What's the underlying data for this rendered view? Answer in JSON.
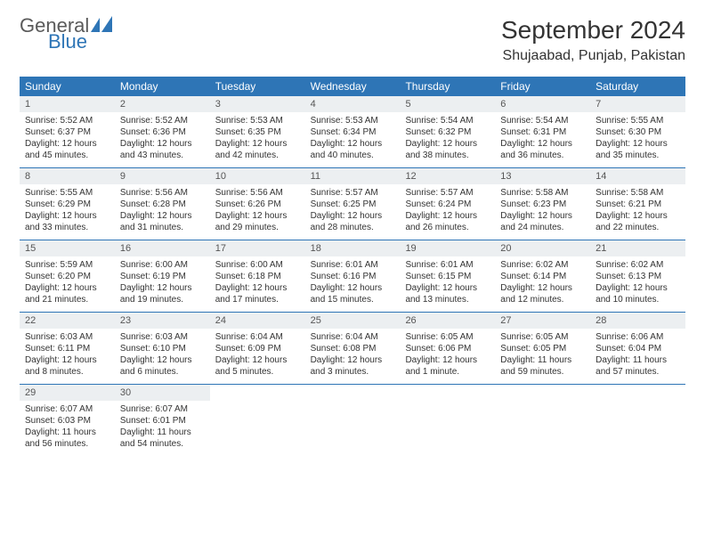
{
  "brand": {
    "word1": "General",
    "word2": "Blue",
    "icon_color": "#2e75b6",
    "text_color": "#5a5a5a"
  },
  "title": "September 2024",
  "location": "Shujaabad, Punjab, Pakistan",
  "colors": {
    "header_bg": "#2e75b6",
    "header_text": "#ffffff",
    "daynum_bg": "#eceff1",
    "border": "#2e75b6"
  },
  "day_labels": [
    "Sunday",
    "Monday",
    "Tuesday",
    "Wednesday",
    "Thursday",
    "Friday",
    "Saturday"
  ],
  "weeks": [
    [
      {
        "n": "1",
        "sr": "Sunrise: 5:52 AM",
        "ss": "Sunset: 6:37 PM",
        "d1": "Daylight: 12 hours",
        "d2": "and 45 minutes."
      },
      {
        "n": "2",
        "sr": "Sunrise: 5:52 AM",
        "ss": "Sunset: 6:36 PM",
        "d1": "Daylight: 12 hours",
        "d2": "and 43 minutes."
      },
      {
        "n": "3",
        "sr": "Sunrise: 5:53 AM",
        "ss": "Sunset: 6:35 PM",
        "d1": "Daylight: 12 hours",
        "d2": "and 42 minutes."
      },
      {
        "n": "4",
        "sr": "Sunrise: 5:53 AM",
        "ss": "Sunset: 6:34 PM",
        "d1": "Daylight: 12 hours",
        "d2": "and 40 minutes."
      },
      {
        "n": "5",
        "sr": "Sunrise: 5:54 AM",
        "ss": "Sunset: 6:32 PM",
        "d1": "Daylight: 12 hours",
        "d2": "and 38 minutes."
      },
      {
        "n": "6",
        "sr": "Sunrise: 5:54 AM",
        "ss": "Sunset: 6:31 PM",
        "d1": "Daylight: 12 hours",
        "d2": "and 36 minutes."
      },
      {
        "n": "7",
        "sr": "Sunrise: 5:55 AM",
        "ss": "Sunset: 6:30 PM",
        "d1": "Daylight: 12 hours",
        "d2": "and 35 minutes."
      }
    ],
    [
      {
        "n": "8",
        "sr": "Sunrise: 5:55 AM",
        "ss": "Sunset: 6:29 PM",
        "d1": "Daylight: 12 hours",
        "d2": "and 33 minutes."
      },
      {
        "n": "9",
        "sr": "Sunrise: 5:56 AM",
        "ss": "Sunset: 6:28 PM",
        "d1": "Daylight: 12 hours",
        "d2": "and 31 minutes."
      },
      {
        "n": "10",
        "sr": "Sunrise: 5:56 AM",
        "ss": "Sunset: 6:26 PM",
        "d1": "Daylight: 12 hours",
        "d2": "and 29 minutes."
      },
      {
        "n": "11",
        "sr": "Sunrise: 5:57 AM",
        "ss": "Sunset: 6:25 PM",
        "d1": "Daylight: 12 hours",
        "d2": "and 28 minutes."
      },
      {
        "n": "12",
        "sr": "Sunrise: 5:57 AM",
        "ss": "Sunset: 6:24 PM",
        "d1": "Daylight: 12 hours",
        "d2": "and 26 minutes."
      },
      {
        "n": "13",
        "sr": "Sunrise: 5:58 AM",
        "ss": "Sunset: 6:23 PM",
        "d1": "Daylight: 12 hours",
        "d2": "and 24 minutes."
      },
      {
        "n": "14",
        "sr": "Sunrise: 5:58 AM",
        "ss": "Sunset: 6:21 PM",
        "d1": "Daylight: 12 hours",
        "d2": "and 22 minutes."
      }
    ],
    [
      {
        "n": "15",
        "sr": "Sunrise: 5:59 AM",
        "ss": "Sunset: 6:20 PM",
        "d1": "Daylight: 12 hours",
        "d2": "and 21 minutes."
      },
      {
        "n": "16",
        "sr": "Sunrise: 6:00 AM",
        "ss": "Sunset: 6:19 PM",
        "d1": "Daylight: 12 hours",
        "d2": "and 19 minutes."
      },
      {
        "n": "17",
        "sr": "Sunrise: 6:00 AM",
        "ss": "Sunset: 6:18 PM",
        "d1": "Daylight: 12 hours",
        "d2": "and 17 minutes."
      },
      {
        "n": "18",
        "sr": "Sunrise: 6:01 AM",
        "ss": "Sunset: 6:16 PM",
        "d1": "Daylight: 12 hours",
        "d2": "and 15 minutes."
      },
      {
        "n": "19",
        "sr": "Sunrise: 6:01 AM",
        "ss": "Sunset: 6:15 PM",
        "d1": "Daylight: 12 hours",
        "d2": "and 13 minutes."
      },
      {
        "n": "20",
        "sr": "Sunrise: 6:02 AM",
        "ss": "Sunset: 6:14 PM",
        "d1": "Daylight: 12 hours",
        "d2": "and 12 minutes."
      },
      {
        "n": "21",
        "sr": "Sunrise: 6:02 AM",
        "ss": "Sunset: 6:13 PM",
        "d1": "Daylight: 12 hours",
        "d2": "and 10 minutes."
      }
    ],
    [
      {
        "n": "22",
        "sr": "Sunrise: 6:03 AM",
        "ss": "Sunset: 6:11 PM",
        "d1": "Daylight: 12 hours",
        "d2": "and 8 minutes."
      },
      {
        "n": "23",
        "sr": "Sunrise: 6:03 AM",
        "ss": "Sunset: 6:10 PM",
        "d1": "Daylight: 12 hours",
        "d2": "and 6 minutes."
      },
      {
        "n": "24",
        "sr": "Sunrise: 6:04 AM",
        "ss": "Sunset: 6:09 PM",
        "d1": "Daylight: 12 hours",
        "d2": "and 5 minutes."
      },
      {
        "n": "25",
        "sr": "Sunrise: 6:04 AM",
        "ss": "Sunset: 6:08 PM",
        "d1": "Daylight: 12 hours",
        "d2": "and 3 minutes."
      },
      {
        "n": "26",
        "sr": "Sunrise: 6:05 AM",
        "ss": "Sunset: 6:06 PM",
        "d1": "Daylight: 12 hours",
        "d2": "and 1 minute."
      },
      {
        "n": "27",
        "sr": "Sunrise: 6:05 AM",
        "ss": "Sunset: 6:05 PM",
        "d1": "Daylight: 11 hours",
        "d2": "and 59 minutes."
      },
      {
        "n": "28",
        "sr": "Sunrise: 6:06 AM",
        "ss": "Sunset: 6:04 PM",
        "d1": "Daylight: 11 hours",
        "d2": "and 57 minutes."
      }
    ],
    [
      {
        "n": "29",
        "sr": "Sunrise: 6:07 AM",
        "ss": "Sunset: 6:03 PM",
        "d1": "Daylight: 11 hours",
        "d2": "and 56 minutes."
      },
      {
        "n": "30",
        "sr": "Sunrise: 6:07 AM",
        "ss": "Sunset: 6:01 PM",
        "d1": "Daylight: 11 hours",
        "d2": "and 54 minutes."
      },
      {
        "empty": true
      },
      {
        "empty": true
      },
      {
        "empty": true
      },
      {
        "empty": true
      },
      {
        "empty": true
      }
    ]
  ]
}
